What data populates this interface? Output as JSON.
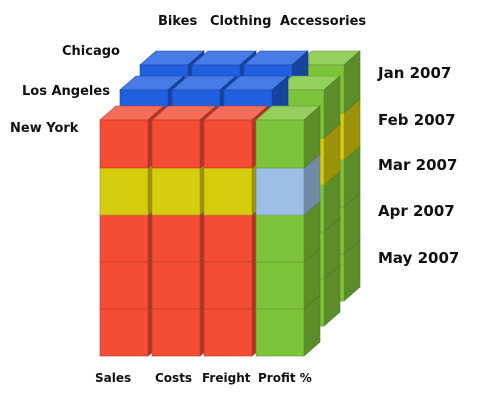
{
  "top_labels": [
    "Bikes",
    "Clothing",
    "Accessories"
  ],
  "city_labels": [
    "Chicago",
    "Los Angeles",
    "New York"
  ],
  "month_labels": [
    "Jan 2007",
    "Feb 2007",
    "Mar 2007",
    "Apr 2007",
    "May 2007"
  ],
  "measure_labels": [
    "Sales",
    "Costs",
    "Freight",
    "Profit %"
  ],
  "colors": {
    "sales_red": "#f44d33",
    "highlight_yellow": "#d6cc0e",
    "selected_blue": "#9dbfe6",
    "profit_green": "#7ec43a",
    "back_blue": "#1f5fe0"
  }
}
